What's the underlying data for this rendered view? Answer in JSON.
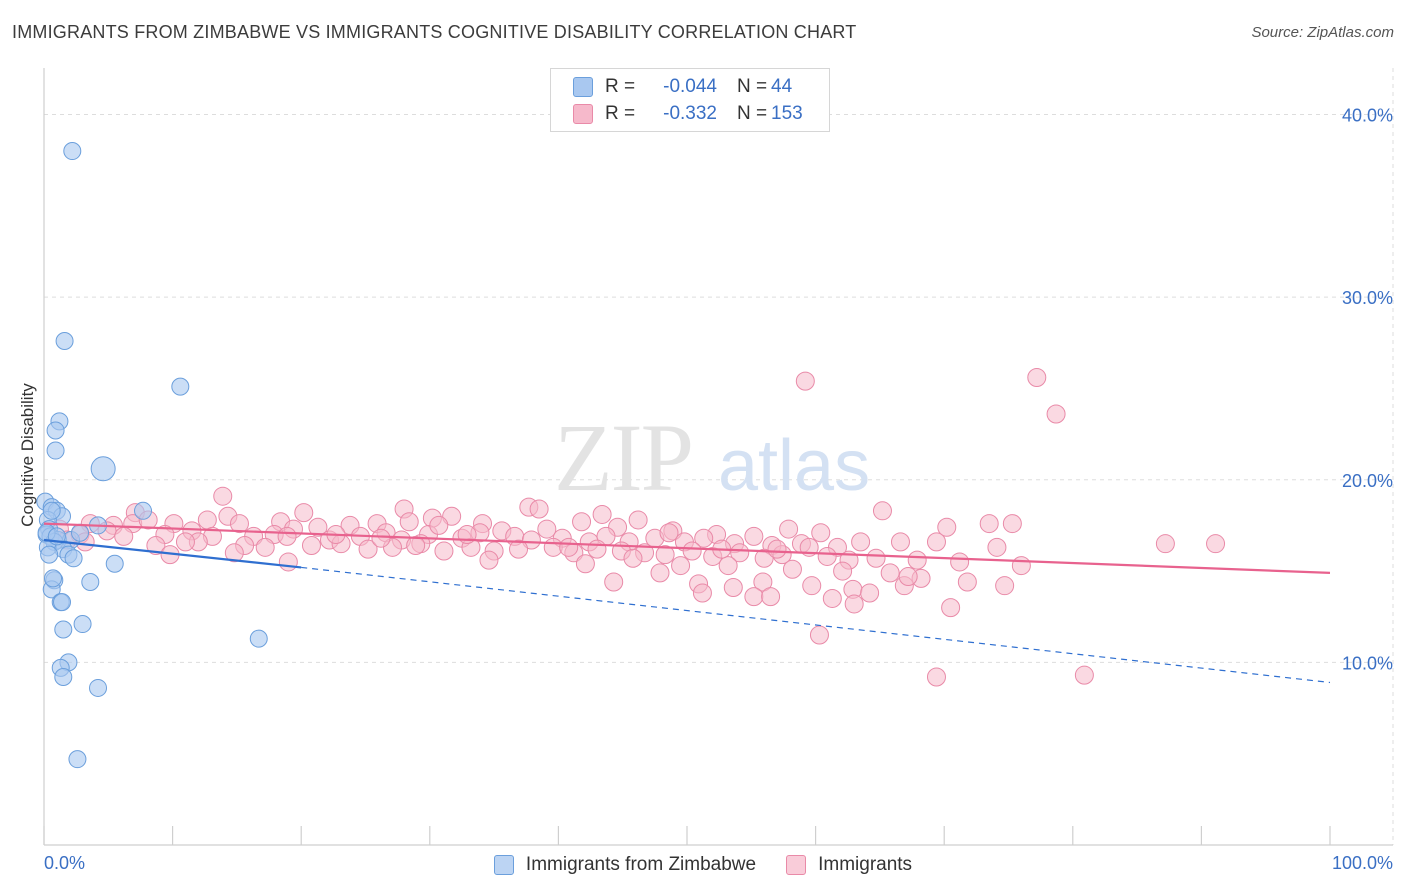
{
  "title": "IMMIGRANTS FROM ZIMBABWE VS IMMIGRANTS COGNITIVE DISABILITY CORRELATION CHART",
  "source": "Source: ZipAtlas.com",
  "watermark": {
    "part1": "ZIP",
    "part2": "atlas"
  },
  "colors": {
    "blue_fill": "#a9c8f0",
    "blue_stroke": "#6b9fdc",
    "blue_line": "#2f6fd0",
    "pink_fill": "#f6b9cb",
    "pink_stroke": "#e98aa8",
    "pink_line": "#e8628e",
    "tick_label": "#3a6fc4",
    "grid": "#dddddd"
  },
  "legend": {
    "rows": [
      {
        "r_label": "R =",
        "r_value": "-0.044",
        "n_label": "N =",
        "n_value": "44"
      },
      {
        "r_label": "R =",
        "r_value": "-0.332",
        "n_label": "N =",
        "n_value": "153"
      }
    ]
  },
  "bottom_legend": [
    "Immigrants from Zimbabwe",
    "Immigrants"
  ],
  "chart_data": {
    "type": "scatter",
    "title": "IMMIGRANTS FROM ZIMBABWE VS IMMIGRANTS COGNITIVE DISABILITY CORRELATION CHART",
    "xlabel": "",
    "ylabel": "Cognitive Disability",
    "xlim": [
      0,
      100
    ],
    "ylim": [
      0,
      42
    ],
    "x_tick_labels": [
      "0.0%",
      "100.0%"
    ],
    "y_ticks": [
      10,
      20,
      30,
      40
    ],
    "y_tick_labels": [
      "10.0%",
      "20.0%",
      "30.0%",
      "40.0%"
    ],
    "grid": true,
    "legend_position": "top-center",
    "series": [
      {
        "name": "Immigrants from Zimbabwe",
        "color": "#a9c8f0",
        "points": [
          [
            2.2,
            38.0
          ],
          [
            1.6,
            27.6
          ],
          [
            10.6,
            25.1
          ],
          [
            1.2,
            23.2
          ],
          [
            0.9,
            22.7
          ],
          [
            0.9,
            21.6
          ],
          [
            4.6,
            20.6
          ],
          [
            0.1,
            18.8
          ],
          [
            0.6,
            18.5
          ],
          [
            1.0,
            18.3
          ],
          [
            7.7,
            18.3
          ],
          [
            1.4,
            18.0
          ],
          [
            0.3,
            17.8
          ],
          [
            0.4,
            17.3
          ],
          [
            4.2,
            17.5
          ],
          [
            0.2,
            17.0
          ],
          [
            0.5,
            16.9
          ],
          [
            1.1,
            16.7
          ],
          [
            0.8,
            16.6
          ],
          [
            0.3,
            16.3
          ],
          [
            2.1,
            16.7
          ],
          [
            1.5,
            16.2
          ],
          [
            1.9,
            15.9
          ],
          [
            2.3,
            15.7
          ],
          [
            5.5,
            15.4
          ],
          [
            0.8,
            14.5
          ],
          [
            3.6,
            14.4
          ],
          [
            0.6,
            14.0
          ],
          [
            1.3,
            13.3
          ],
          [
            1.4,
            13.3
          ],
          [
            3.0,
            12.1
          ],
          [
            1.5,
            11.8
          ],
          [
            16.7,
            11.3
          ],
          [
            1.9,
            10.0
          ],
          [
            1.3,
            9.7
          ],
          [
            1.5,
            9.2
          ],
          [
            4.2,
            8.6
          ],
          [
            2.6,
            4.7
          ],
          [
            0.2,
            17.1
          ],
          [
            0.6,
            18.3
          ],
          [
            1.0,
            16.9
          ],
          [
            0.4,
            15.9
          ],
          [
            2.8,
            17.1
          ],
          [
            0.7,
            14.6
          ]
        ]
      },
      {
        "name": "Immigrants",
        "color": "#f6b9cb",
        "points": [
          [
            59.2,
            25.4
          ],
          [
            77.2,
            25.6
          ],
          [
            78.7,
            23.6
          ],
          [
            13.9,
            19.1
          ],
          [
            28.0,
            18.4
          ],
          [
            37.7,
            18.5
          ],
          [
            65.2,
            18.3
          ],
          [
            7.1,
            18.2
          ],
          [
            14.3,
            18.0
          ],
          [
            20.2,
            18.2
          ],
          [
            31.7,
            18.0
          ],
          [
            38.5,
            18.4
          ],
          [
            3.6,
            17.6
          ],
          [
            5.4,
            17.5
          ],
          [
            6.9,
            17.6
          ],
          [
            8.1,
            17.8
          ],
          [
            10.1,
            17.6
          ],
          [
            12.7,
            17.8
          ],
          [
            15.2,
            17.6
          ],
          [
            18.4,
            17.7
          ],
          [
            21.3,
            17.4
          ],
          [
            23.8,
            17.5
          ],
          [
            25.9,
            17.6
          ],
          [
            28.4,
            17.7
          ],
          [
            30.2,
            17.9
          ],
          [
            34.1,
            17.6
          ],
          [
            35.6,
            17.2
          ],
          [
            39.1,
            17.3
          ],
          [
            41.8,
            17.7
          ],
          [
            44.6,
            17.4
          ],
          [
            46.2,
            17.8
          ],
          [
            48.9,
            17.2
          ],
          [
            52.3,
            17.0
          ],
          [
            57.9,
            17.3
          ],
          [
            60.4,
            17.1
          ],
          [
            70.2,
            17.4
          ],
          [
            73.5,
            17.6
          ],
          [
            75.3,
            17.6
          ],
          [
            1.2,
            17.3
          ],
          [
            2.8,
            17.0
          ],
          [
            4.9,
            17.2
          ],
          [
            6.2,
            16.9
          ],
          [
            9.4,
            17.0
          ],
          [
            11.5,
            17.2
          ],
          [
            13.1,
            16.9
          ],
          [
            16.3,
            16.9
          ],
          [
            17.9,
            17.0
          ],
          [
            19.4,
            17.3
          ],
          [
            22.2,
            16.7
          ],
          [
            24.6,
            16.9
          ],
          [
            26.6,
            17.1
          ],
          [
            27.8,
            16.7
          ],
          [
            29.9,
            17.0
          ],
          [
            32.5,
            16.8
          ],
          [
            33.9,
            17.1
          ],
          [
            36.6,
            16.9
          ],
          [
            37.9,
            16.7
          ],
          [
            40.3,
            16.8
          ],
          [
            42.4,
            16.6
          ],
          [
            43.7,
            16.9
          ],
          [
            45.5,
            16.6
          ],
          [
            47.5,
            16.8
          ],
          [
            49.8,
            16.6
          ],
          [
            51.3,
            16.8
          ],
          [
            53.7,
            16.5
          ],
          [
            55.2,
            16.9
          ],
          [
            56.6,
            16.4
          ],
          [
            58.9,
            16.5
          ],
          [
            61.7,
            16.3
          ],
          [
            63.5,
            16.6
          ],
          [
            66.6,
            16.6
          ],
          [
            69.4,
            16.6
          ],
          [
            74.1,
            16.3
          ],
          [
            1.8,
            16.7
          ],
          [
            3.2,
            16.6
          ],
          [
            8.7,
            16.4
          ],
          [
            12.0,
            16.6
          ],
          [
            15.6,
            16.4
          ],
          [
            17.2,
            16.3
          ],
          [
            20.8,
            16.4
          ],
          [
            23.1,
            16.5
          ],
          [
            25.2,
            16.2
          ],
          [
            27.1,
            16.3
          ],
          [
            29.3,
            16.5
          ],
          [
            31.1,
            16.1
          ],
          [
            33.2,
            16.3
          ],
          [
            35.0,
            16.1
          ],
          [
            36.9,
            16.2
          ],
          [
            39.6,
            16.3
          ],
          [
            41.2,
            16.0
          ],
          [
            43.0,
            16.2
          ],
          [
            44.9,
            16.1
          ],
          [
            46.7,
            16.0
          ],
          [
            48.3,
            15.9
          ],
          [
            50.4,
            16.1
          ],
          [
            52.0,
            15.8
          ],
          [
            54.1,
            16.0
          ],
          [
            56.0,
            15.7
          ],
          [
            57.4,
            15.9
          ],
          [
            60.9,
            15.8
          ],
          [
            62.6,
            15.6
          ],
          [
            64.7,
            15.7
          ],
          [
            67.9,
            15.6
          ],
          [
            71.2,
            15.5
          ],
          [
            76.0,
            15.3
          ],
          [
            87.2,
            16.5
          ],
          [
            91.1,
            16.5
          ],
          [
            9.8,
            15.9
          ],
          [
            19.0,
            15.5
          ],
          [
            34.6,
            15.6
          ],
          [
            42.1,
            15.4
          ],
          [
            45.8,
            15.7
          ],
          [
            49.5,
            15.3
          ],
          [
            53.2,
            15.3
          ],
          [
            58.2,
            15.1
          ],
          [
            62.1,
            15.0
          ],
          [
            65.8,
            14.9
          ],
          [
            68.2,
            14.6
          ],
          [
            71.8,
            14.4
          ],
          [
            74.7,
            14.2
          ],
          [
            47.9,
            14.9
          ],
          [
            50.9,
            14.3
          ],
          [
            53.6,
            14.1
          ],
          [
            55.9,
            14.4
          ],
          [
            59.7,
            14.2
          ],
          [
            62.9,
            14.0
          ],
          [
            66.9,
            14.2
          ],
          [
            51.2,
            13.8
          ],
          [
            55.2,
            13.6
          ],
          [
            61.3,
            13.5
          ],
          [
            64.2,
            13.8
          ],
          [
            70.5,
            13.0
          ],
          [
            56.5,
            13.6
          ],
          [
            63.0,
            13.2
          ],
          [
            60.3,
            11.5
          ],
          [
            69.4,
            9.2
          ],
          [
            80.9,
            9.3
          ],
          [
            44.3,
            14.4
          ],
          [
            52.7,
            16.2
          ],
          [
            48.6,
            17.1
          ],
          [
            40.8,
            16.3
          ],
          [
            43.4,
            18.1
          ],
          [
            28.9,
            16.4
          ],
          [
            18.9,
            16.9
          ],
          [
            11.0,
            16.6
          ],
          [
            14.8,
            16.0
          ],
          [
            22.7,
            17.0
          ],
          [
            26.2,
            16.8
          ],
          [
            30.7,
            17.5
          ],
          [
            32.9,
            17.0
          ],
          [
            67.2,
            14.7
          ],
          [
            57.0,
            16.2
          ],
          [
            59.5,
            16.3
          ]
        ]
      }
    ],
    "trend_lines": [
      {
        "series": "Immigrants from Zimbabwe",
        "solid": [
          [
            0,
            16.7
          ],
          [
            20,
            15.2
          ]
        ],
        "dashed": [
          [
            20,
            15.2
          ],
          [
            100,
            8.9
          ]
        ]
      },
      {
        "series": "Immigrants",
        "solid": [
          [
            0,
            17.6
          ],
          [
            100,
            14.9
          ]
        ]
      }
    ]
  }
}
